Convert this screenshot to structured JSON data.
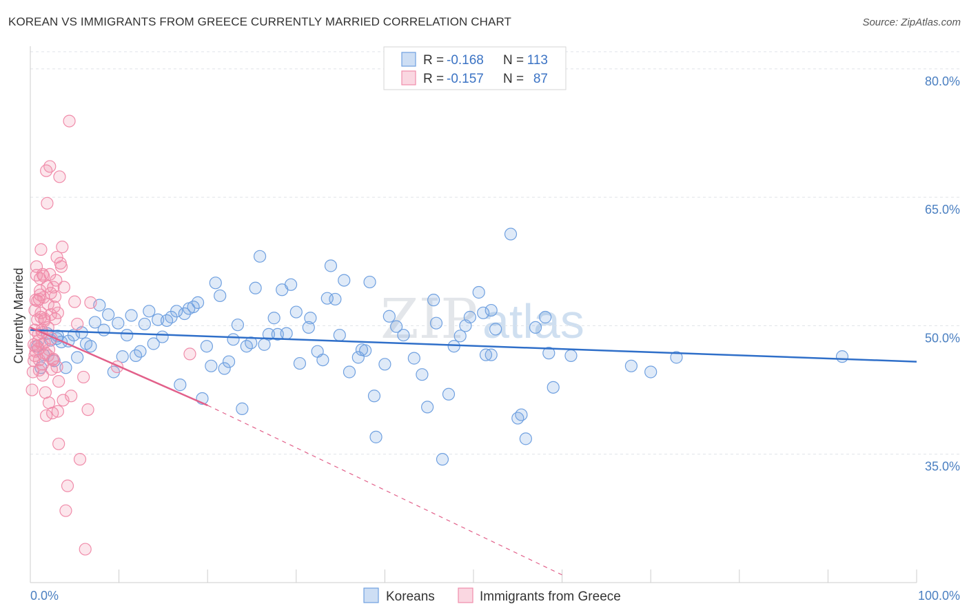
{
  "title": "KOREAN VS IMMIGRANTS FROM GREECE CURRENTLY MARRIED CORRELATION CHART",
  "source": "Source: ZipAtlas.com",
  "watermark": {
    "zip": "ZIP",
    "atlas": "atlas"
  },
  "chart_data": {
    "type": "scatter",
    "ylabel": "Currently Married",
    "xlim": [
      0,
      100
    ],
    "ylim": [
      20,
      82
    ],
    "x_tick_labels": {
      "left": "0.0%",
      "right": "100.0%"
    },
    "y_ticks": [
      {
        "value": 80,
        "label": "80.0%"
      },
      {
        "value": 65,
        "label": "65.0%"
      },
      {
        "value": 50,
        "label": "50.0%"
      },
      {
        "value": 35,
        "label": "35.0%"
      }
    ],
    "grid": true,
    "legend_stats": [
      {
        "r_label": "R =",
        "r_value": "-0.168",
        "n_label": "N =",
        "n_value": "113"
      },
      {
        "r_label": "R =",
        "r_value": "-0.157",
        "n_label": "N =",
        "n_value": "87"
      }
    ],
    "series": [
      {
        "name": "Koreans",
        "color": "#6fa0e0",
        "line_color": "#2f6fc9",
        "trend": {
          "x0": 0,
          "y0": 49.5,
          "x1": 100,
          "y1": 45.8
        },
        "points": [
          [
            0.8,
            47.6
          ],
          [
            1.2,
            45.1
          ],
          [
            1.5,
            46.6
          ],
          [
            1.9,
            49.1
          ],
          [
            2.3,
            48.3
          ],
          [
            2.7,
            45.9
          ],
          [
            3.1,
            48.8
          ],
          [
            3.5,
            48.1
          ],
          [
            4.0,
            45.1
          ],
          [
            4.3,
            48.2
          ],
          [
            4.9,
            48.9
          ],
          [
            5.3,
            46.3
          ],
          [
            5.8,
            49.2
          ],
          [
            6.3,
            47.9
          ],
          [
            6.8,
            47.6
          ],
          [
            7.3,
            50.4
          ],
          [
            7.8,
            52.4
          ],
          [
            8.3,
            49.5
          ],
          [
            8.8,
            51.3
          ],
          [
            9.4,
            44.6
          ],
          [
            9.9,
            50.3
          ],
          [
            10.4,
            46.4
          ],
          [
            10.9,
            48.9
          ],
          [
            11.4,
            51.2
          ],
          [
            11.9,
            46.5
          ],
          [
            12.4,
            47.0
          ],
          [
            12.9,
            50.2
          ],
          [
            13.4,
            51.7
          ],
          [
            13.9,
            47.9
          ],
          [
            14.4,
            50.7
          ],
          [
            14.9,
            48.7
          ],
          [
            15.4,
            50.6
          ],
          [
            15.9,
            51.0
          ],
          [
            16.5,
            51.7
          ],
          [
            16.9,
            43.1
          ],
          [
            17.4,
            51.4
          ],
          [
            17.9,
            52.0
          ],
          [
            18.4,
            52.2
          ],
          [
            18.9,
            52.7
          ],
          [
            19.4,
            41.5
          ],
          [
            19.9,
            47.6
          ],
          [
            20.4,
            45.3
          ],
          [
            20.9,
            55.0
          ],
          [
            21.4,
            53.5
          ],
          [
            21.9,
            45.0
          ],
          [
            22.4,
            45.8
          ],
          [
            22.9,
            48.4
          ],
          [
            23.4,
            50.1
          ],
          [
            23.9,
            40.3
          ],
          [
            24.4,
            47.6
          ],
          [
            24.9,
            48.0
          ],
          [
            25.4,
            54.4
          ],
          [
            25.9,
            58.1
          ],
          [
            26.4,
            47.8
          ],
          [
            26.9,
            49.0
          ],
          [
            27.5,
            50.9
          ],
          [
            27.9,
            49.0
          ],
          [
            28.4,
            54.2
          ],
          [
            28.9,
            49.1
          ],
          [
            29.4,
            54.8
          ],
          [
            30.0,
            51.6
          ],
          [
            30.4,
            45.6
          ],
          [
            31.4,
            49.8
          ],
          [
            31.6,
            50.9
          ],
          [
            32.4,
            47.0
          ],
          [
            33.0,
            46.0
          ],
          [
            33.5,
            53.2
          ],
          [
            33.9,
            57.0
          ],
          [
            34.4,
            53.1
          ],
          [
            34.9,
            48.9
          ],
          [
            35.4,
            55.3
          ],
          [
            36.0,
            44.6
          ],
          [
            37.0,
            46.3
          ],
          [
            37.4,
            47.2
          ],
          [
            37.8,
            47.1
          ],
          [
            38.3,
            55.1
          ],
          [
            38.8,
            41.8
          ],
          [
            39.0,
            37.0
          ],
          [
            40.0,
            45.5
          ],
          [
            40.5,
            51.1
          ],
          [
            41.3,
            49.9
          ],
          [
            42.1,
            48.9
          ],
          [
            43.3,
            46.2
          ],
          [
            44.2,
            44.3
          ],
          [
            44.8,
            40.5
          ],
          [
            45.5,
            53.0
          ],
          [
            45.8,
            50.3
          ],
          [
            46.5,
            34.4
          ],
          [
            47.2,
            42.0
          ],
          [
            47.8,
            47.6
          ],
          [
            48.5,
            48.8
          ],
          [
            49.1,
            50.0
          ],
          [
            49.6,
            51.0
          ],
          [
            50.6,
            53.9
          ],
          [
            51.1,
            51.5
          ],
          [
            51.4,
            46.6
          ],
          [
            52.0,
            46.6
          ],
          [
            52.5,
            49.6
          ],
          [
            54.2,
            60.7
          ],
          [
            55.0,
            39.2
          ],
          [
            55.4,
            39.6
          ],
          [
            55.9,
            36.8
          ],
          [
            57.0,
            49.8
          ],
          [
            58.1,
            51.0
          ],
          [
            58.5,
            46.8
          ],
          [
            59.0,
            42.8
          ],
          [
            61.0,
            46.5
          ],
          [
            67.8,
            45.3
          ],
          [
            70.0,
            44.6
          ],
          [
            72.9,
            46.3
          ],
          [
            91.6,
            46.4
          ],
          [
            52.0,
            51.8
          ],
          [
            3.0,
            48.5
          ]
        ]
      },
      {
        "name": "Immigrants from Greece",
        "color": "#f08caa",
        "line_color": "#e2608a",
        "trend": {
          "x0": 0,
          "y0": 49.8,
          "x1": 20,
          "y1": 40.7
        },
        "trend_dashed": {
          "x0": 20,
          "y0": 40.7,
          "x1": 60,
          "y1": 20.9
        },
        "points": [
          [
            0.2,
            42.5
          ],
          [
            0.3,
            44.6
          ],
          [
            0.4,
            47.8
          ],
          [
            0.5,
            49.5
          ],
          [
            0.5,
            51.8
          ],
          [
            0.6,
            53.0
          ],
          [
            0.6,
            47.6
          ],
          [
            0.7,
            56.9
          ],
          [
            0.7,
            55.9
          ],
          [
            0.8,
            50.7
          ],
          [
            0.8,
            52.9
          ],
          [
            0.9,
            48.2
          ],
          [
            0.9,
            47.3
          ],
          [
            1.0,
            46.0
          ],
          [
            1.0,
            44.8
          ],
          [
            1.1,
            54.1
          ],
          [
            1.1,
            53.6
          ],
          [
            1.2,
            58.9
          ],
          [
            1.2,
            51.0
          ],
          [
            1.3,
            49.5
          ],
          [
            1.3,
            47.8
          ],
          [
            1.4,
            45.5
          ],
          [
            1.4,
            44.2
          ],
          [
            1.5,
            55.8
          ],
          [
            1.5,
            53.3
          ],
          [
            1.6,
            50.8
          ],
          [
            1.6,
            48.0
          ],
          [
            1.7,
            46.8
          ],
          [
            1.7,
            42.2
          ],
          [
            1.8,
            39.5
          ],
          [
            1.8,
            68.1
          ],
          [
            1.9,
            64.3
          ],
          [
            1.9,
            54.6
          ],
          [
            2.0,
            52.5
          ],
          [
            2.0,
            49.8
          ],
          [
            2.1,
            47.2
          ],
          [
            2.1,
            41.0
          ],
          [
            2.2,
            68.6
          ],
          [
            2.2,
            56.0
          ],
          [
            2.3,
            53.8
          ],
          [
            2.3,
            51.3
          ],
          [
            2.4,
            48.5
          ],
          [
            2.5,
            46.0
          ],
          [
            2.5,
            39.8
          ],
          [
            2.6,
            54.5
          ],
          [
            2.7,
            52.2
          ],
          [
            2.8,
            50.8
          ],
          [
            2.9,
            55.3
          ],
          [
            3.0,
            58.0
          ],
          [
            3.0,
            45.2
          ],
          [
            3.1,
            40.0
          ],
          [
            3.2,
            43.5
          ],
          [
            3.2,
            36.2
          ],
          [
            3.3,
            67.4
          ],
          [
            3.4,
            57.3
          ],
          [
            3.5,
            56.9
          ],
          [
            3.6,
            59.2
          ],
          [
            3.7,
            41.3
          ],
          [
            3.8,
            54.5
          ],
          [
            4.0,
            28.4
          ],
          [
            4.2,
            31.3
          ],
          [
            4.4,
            73.9
          ],
          [
            4.6,
            41.8
          ],
          [
            5.0,
            52.8
          ],
          [
            5.3,
            50.2
          ],
          [
            5.6,
            34.4
          ],
          [
            6.0,
            44.0
          ],
          [
            6.2,
            23.9
          ],
          [
            6.5,
            40.2
          ],
          [
            6.8,
            52.7
          ],
          [
            9.8,
            45.2
          ],
          [
            18.0,
            46.7
          ],
          [
            0.9,
            49.0
          ],
          [
            1.4,
            56.0
          ],
          [
            2.6,
            46.1
          ],
          [
            1.2,
            51.5
          ],
          [
            0.6,
            47.0
          ],
          [
            2.0,
            46.5
          ],
          [
            1.0,
            53.1
          ],
          [
            3.1,
            51.5
          ],
          [
            0.5,
            46.5
          ],
          [
            1.6,
            50.6
          ],
          [
            1.3,
            49.2
          ],
          [
            2.8,
            53.4
          ],
          [
            2.4,
            44.9
          ],
          [
            1.1,
            55.5
          ],
          [
            0.4,
            45.9
          ]
        ]
      }
    ]
  }
}
